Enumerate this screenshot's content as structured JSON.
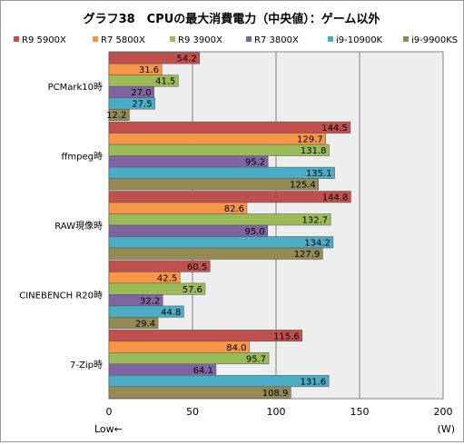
{
  "chart_data": {
    "type": "bar",
    "orientation": "horizontal",
    "title": "グラフ38　CPUの最大消費電力（中央値）：ゲーム以外",
    "categories": [
      "PCMark10時",
      "ffmpeg時",
      "RAW現像時",
      "CINEBENCH R20時",
      "7-Zip時"
    ],
    "series": [
      {
        "name": "R9 5900X",
        "color": "#c0504d",
        "values": [
          54.2,
          144.5,
          144.8,
          60.5,
          115.6
        ]
      },
      {
        "name": "R7 5800X",
        "color": "#f79646",
        "values": [
          31.6,
          129.7,
          82.6,
          42.5,
          84.0
        ]
      },
      {
        "name": "R9 3900X",
        "color": "#9bbb59",
        "values": [
          41.5,
          131.8,
          132.7,
          57.6,
          95.7
        ]
      },
      {
        "name": "R7 3800X",
        "color": "#8064a2",
        "values": [
          27.0,
          95.2,
          95.0,
          32.2,
          64.1
        ]
      },
      {
        "name": "i9-10900K",
        "color": "#4bacc6",
        "values": [
          27.5,
          135.1,
          134.2,
          44.8,
          131.6
        ]
      },
      {
        "name": "i9-9900KS",
        "color": "#948a54",
        "values": [
          12.2,
          125.4,
          127.9,
          29.4,
          108.9
        ]
      }
    ],
    "xlim": [
      0,
      200
    ],
    "xticks": [
      "0",
      "50",
      "100",
      "150",
      "200"
    ],
    "unit": "(W)",
    "direction_note": "Low←",
    "legend_position": "top",
    "grid": true
  }
}
